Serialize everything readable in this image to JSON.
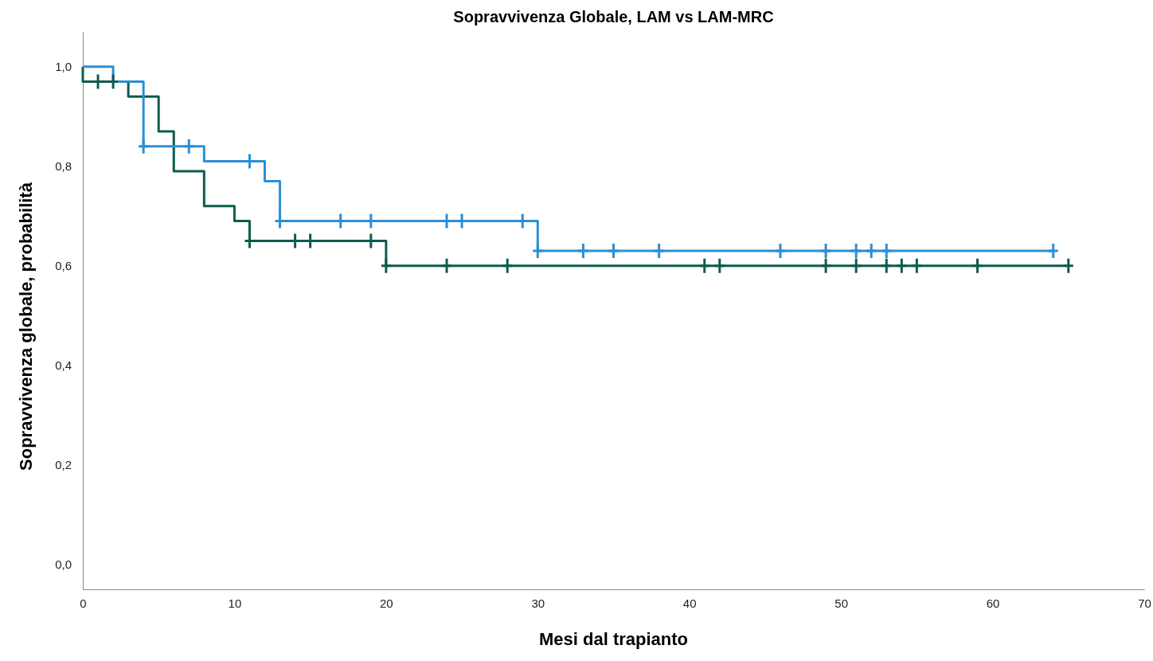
{
  "chart_data": {
    "type": "step",
    "title": "Sopravvivenza Globale, LAM vs LAM-MRC",
    "xlabel": "Mesi dal trapianto",
    "ylabel": "Sopravvivenza globale, probabilità",
    "xlim": [
      0,
      70
    ],
    "xticks": [
      0,
      10,
      20,
      30,
      40,
      50,
      60,
      70
    ],
    "ylim": [
      -0.05,
      1.07
    ],
    "yticks": [
      {
        "value": 0,
        "label": "0,0"
      },
      {
        "value": 0.2,
        "label": "0,2"
      },
      {
        "value": 0.4,
        "label": "0,4"
      },
      {
        "value": 0.6,
        "label": "0,6"
      },
      {
        "value": 0.8,
        "label": "0,8"
      },
      {
        "value": 1,
        "label": "1,0"
      }
    ],
    "grid": false,
    "line_style": "solid",
    "series": [
      {
        "color": "#0d5c4e",
        "x": [
          0,
          0,
          3,
          5,
          6,
          8,
          10,
          11,
          20,
          65
        ],
        "values": [
          1,
          0.97,
          0.94,
          0.87,
          0.79,
          0.72,
          0.69,
          0.65,
          0.6,
          0.6
        ]
      },
      {
        "color": "#2a8fd6",
        "x": [
          0,
          2,
          4,
          8,
          12,
          13,
          30,
          64
        ],
        "values": [
          1,
          0.97,
          0.84,
          0.81,
          0.77,
          0.69,
          0.63,
          0.63
        ]
      },
      {
        "type": "scatter",
        "marker": "cross",
        "color": "#2a8fd6",
        "x": [
          4,
          7,
          11,
          13,
          17,
          19,
          24,
          25,
          29,
          30,
          33,
          35,
          38,
          46,
          49,
          51,
          52,
          53,
          64
        ],
        "values": [
          0.84,
          0.84,
          0.81,
          0.69,
          0.69,
          0.69,
          0.69,
          0.69,
          0.69,
          0.63,
          0.63,
          0.63,
          0.63,
          0.63,
          0.63,
          0.63,
          0.63,
          0.63,
          0.63
        ]
      },
      {
        "type": "scatter",
        "marker": "cross",
        "color": "#0d5c4e",
        "x": [
          1,
          2,
          11,
          14,
          15,
          19,
          20,
          24,
          28,
          41,
          42,
          49,
          51,
          53,
          54,
          55,
          59,
          65
        ],
        "values": [
          0.97,
          0.97,
          0.65,
          0.65,
          0.65,
          0.65,
          0.6,
          0.6,
          0.6,
          0.6,
          0.6,
          0.6,
          0.6,
          0.6,
          0.6,
          0.6,
          0.6,
          0.6
        ]
      }
    ]
  }
}
